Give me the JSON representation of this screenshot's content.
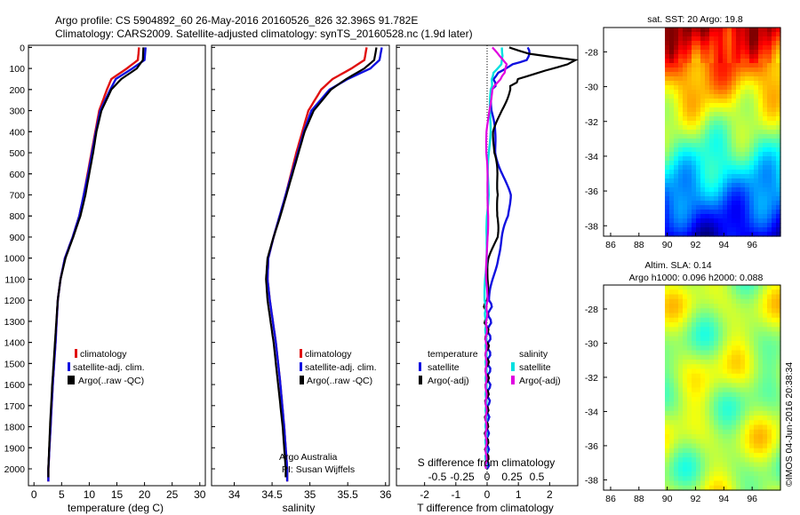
{
  "header": {
    "line1": "Argo profile: CS 5904892_60 26-May-2016 20160526_826 32.396S 91.782E",
    "line2": "Climatology: CARS2009. Satellite-adjusted climatology: synTS_20160528.nc (1.9d later)"
  },
  "depth_ticks": [
    "0",
    "100",
    "200",
    "300",
    "400",
    "500",
    "600",
    "700",
    "800",
    "900",
    "1000",
    "1100",
    "1200",
    "1300",
    "1400",
    "1500",
    "1600",
    "1700",
    "1800",
    "1900",
    "2000"
  ],
  "legend_left": [
    "climatology",
    "satellite-adj. clim.",
    "Argo(..raw -QC)"
  ],
  "legend_diff": {
    "temp_head": "temperature",
    "sal_head": "salinity",
    "temp_sat": "satellite",
    "temp_argo": "Argo(-adj)",
    "sal_sat": "satellite",
    "sal_argo": "Argo(-adj)"
  },
  "credit": {
    "line1": "Argo Australia",
    "line2": "PI: Susan Wijffels"
  },
  "right": {
    "sst_title": "sat. SST: 20 Argo: 19.8",
    "sla_title1": "Altim. SLA: 0.14",
    "sla_title2": "Argo h1000: 0.096 h2000: 0.088",
    "lat_ticks": [
      "-28",
      "-30",
      "-32",
      "-34",
      "-36",
      "-38"
    ],
    "lon_ticks": [
      "86",
      "88",
      "90",
      "92",
      "94",
      "96"
    ],
    "imos": "©IMOS 04-Jun-2016 20:38:34"
  },
  "colors": {
    "climatology": "#e01010",
    "satellite": "#1010e0",
    "argo": "#000000",
    "sal_sat": "#00e0e0",
    "sal_argo": "#e000e0"
  },
  "chart_data": [
    {
      "type": "line",
      "title": "",
      "xlabel": "temperature (deg C)",
      "ylabel": "",
      "xlim": [
        -1,
        31
      ],
      "ylim": [
        2080,
        -10
      ],
      "xticks": [
        "0",
        "5",
        "10",
        "15",
        "20",
        "25",
        "30"
      ],
      "series": [
        {
          "name": "climatology",
          "depth": [
            0,
            60,
            100,
            150,
            200,
            300,
            400,
            500,
            600,
            700,
            800,
            900,
            1000,
            1100,
            1200,
            1400,
            1600,
            1800,
            2000,
            2060
          ],
          "values": [
            19.0,
            18.8,
            16.8,
            14.0,
            13.2,
            11.8,
            11.1,
            10.4,
            9.7,
            9.0,
            8.2,
            7.0,
            5.6,
            4.8,
            4.3,
            3.9,
            3.4,
            3.0,
            2.6,
            2.6
          ]
        },
        {
          "name": "satellite-adj. clim.",
          "depth": [
            0,
            60,
            100,
            150,
            200,
            300,
            400,
            500,
            600,
            700,
            800,
            900,
            1000,
            1100,
            1200,
            1400,
            1600,
            1800,
            2000,
            2060
          ],
          "values": [
            20.2,
            20.0,
            17.8,
            14.8,
            13.8,
            12.0,
            11.2,
            10.5,
            9.8,
            9.0,
            8.2,
            7.0,
            5.6,
            4.8,
            4.3,
            3.9,
            3.4,
            3.0,
            2.6,
            2.6
          ]
        },
        {
          "name": "Argo(..raw -QC)",
          "depth": [
            0,
            60,
            100,
            150,
            200,
            300,
            400,
            500,
            600,
            700,
            800,
            900,
            1000,
            1100,
            1200,
            1400,
            1600,
            1800,
            2000,
            2040
          ],
          "values": [
            19.8,
            19.7,
            18.6,
            15.8,
            14.0,
            12.2,
            11.3,
            10.7,
            10.0,
            9.3,
            8.4,
            7.1,
            5.7,
            4.8,
            4.3,
            3.8,
            3.3,
            2.9,
            2.6,
            2.6
          ]
        }
      ]
    },
    {
      "type": "line",
      "title": "",
      "xlabel": "salinity",
      "ylabel": "",
      "xlim": [
        33.7,
        36.05
      ],
      "ylim": [
        2080,
        -10
      ],
      "xticks": [
        "34",
        "34.5",
        "35",
        "35.5",
        "36"
      ],
      "series": [
        {
          "name": "climatology",
          "depth": [
            0,
            60,
            100,
            150,
            200,
            300,
            400,
            500,
            600,
            700,
            800,
            900,
            1000,
            1100,
            1200,
            1400,
            1600,
            1800,
            2000,
            2060
          ],
          "values": [
            35.75,
            35.72,
            35.55,
            35.3,
            35.15,
            34.98,
            34.9,
            34.82,
            34.75,
            34.68,
            34.6,
            34.52,
            34.45,
            34.44,
            34.47,
            34.55,
            34.61,
            34.66,
            34.7,
            34.7
          ]
        },
        {
          "name": "satellite-adj. clim.",
          "depth": [
            0,
            60,
            100,
            150,
            200,
            300,
            400,
            500,
            600,
            700,
            800,
            900,
            1000,
            1100,
            1200,
            1400,
            1600,
            1800,
            2000,
            2060
          ],
          "values": [
            35.95,
            35.92,
            35.8,
            35.5,
            35.26,
            35.02,
            34.92,
            34.84,
            34.76,
            34.68,
            34.6,
            34.52,
            34.45,
            34.44,
            34.47,
            34.55,
            34.61,
            34.66,
            34.7,
            34.7
          ]
        },
        {
          "name": "Argo(..raw -QC)",
          "depth": [
            0,
            60,
            100,
            150,
            200,
            300,
            400,
            500,
            600,
            700,
            800,
            900,
            1000,
            1100,
            1200,
            1400,
            1600,
            1800,
            2000,
            2040
          ],
          "values": [
            35.88,
            35.85,
            35.72,
            35.48,
            35.28,
            35.05,
            34.93,
            34.85,
            34.77,
            34.69,
            34.61,
            34.52,
            34.44,
            34.42,
            34.44,
            34.52,
            34.58,
            34.64,
            34.68,
            34.68
          ]
        }
      ]
    },
    {
      "type": "line",
      "title": "",
      "xlabel": "T difference from climatology",
      "ylabel": "",
      "xlim": [
        -2.9,
        2.9
      ],
      "ylim": [
        2080,
        -10
      ],
      "xticks": [
        "-2",
        "-1",
        "0",
        "1",
        "2"
      ],
      "top_axis_label": "S difference from climatology",
      "top_ticks": [
        "-0.5",
        "-0.25",
        "0",
        "0.25",
        "0.5"
      ],
      "series": [
        {
          "name": "temperature satellite",
          "depth": [
            0,
            60,
            80,
            120,
            200,
            300,
            400,
            500,
            600,
            700,
            800,
            900,
            1000,
            1100,
            1200,
            1400,
            1600,
            1800,
            2000
          ],
          "values": [
            1.3,
            1.3,
            0.8,
            0.3,
            0.2,
            0.15,
            0.2,
            0.3,
            0.5,
            0.7,
            0.7,
            0.5,
            0.3,
            0.2,
            0.1,
            0.05,
            0.05,
            0.0,
            0.0
          ]
        },
        {
          "name": "temperature Argo(-adj)",
          "depth": [
            0,
            30,
            60,
            80,
            110,
            150,
            200,
            300,
            400,
            500,
            600,
            700,
            800,
            900,
            1000,
            1100,
            1200,
            1400,
            1600,
            1800,
            2000
          ],
          "values": [
            0.7,
            1.4,
            2.8,
            2.6,
            1.8,
            1.0,
            0.7,
            0.45,
            0.25,
            0.2,
            0.3,
            0.4,
            0.3,
            0.3,
            0.1,
            0.0,
            -0.05,
            0.0,
            0.0,
            -0.02,
            0.0
          ]
        },
        {
          "name": "salinity satellite",
          "depth": [
            0,
            40,
            80,
            120,
            200,
            300,
            400,
            500,
            600,
            700,
            800,
            900,
            1000,
            1100,
            1200,
            1400,
            1600,
            1800,
            2000
          ],
          "values": [
            0.15,
            0.16,
            0.14,
            0.06,
            0.04,
            0.03,
            0.03,
            0.02,
            0.01,
            0.01,
            0.0,
            0.0,
            -0.01,
            -0.02,
            -0.02,
            -0.01,
            -0.01,
            -0.01,
            -0.01
          ]
        },
        {
          "name": "salinity Argo(-adj)",
          "depth": [
            0,
            40,
            80,
            120,
            200,
            300,
            400,
            500,
            600,
            700,
            800,
            900,
            1000,
            1100,
            1200,
            1400,
            1600,
            1800,
            2000
          ],
          "values": [
            0.05,
            0.12,
            0.2,
            0.18,
            0.05,
            0.02,
            0.0,
            -0.01,
            0.0,
            0.01,
            0.01,
            0.0,
            0.0,
            -0.01,
            0.0,
            -0.01,
            -0.01,
            -0.01,
            -0.01
          ]
        }
      ]
    }
  ]
}
